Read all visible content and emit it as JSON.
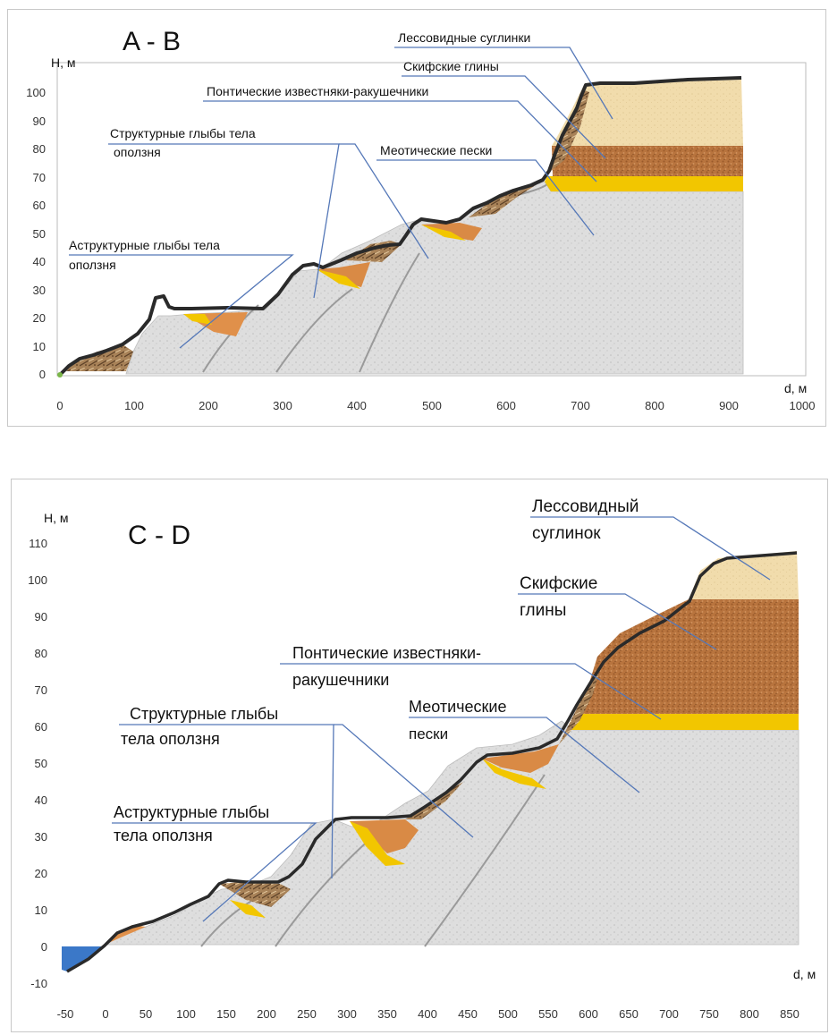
{
  "diagrams": [
    {
      "title": "A - B",
      "y_axis_label": "H, м",
      "x_axis_label": "d, м",
      "x_ticks": [
        "0",
        "100",
        "200",
        "300",
        "400",
        "500",
        "600",
        "700",
        "800",
        "900",
        "1000"
      ],
      "y_ticks": [
        "0",
        "10",
        "20",
        "30",
        "40",
        "50",
        "60",
        "70",
        "80",
        "90",
        "100"
      ],
      "labels": {
        "loess": "Лессовидные суглинки",
        "scythian": "Скифские глины",
        "pontic": "Понтические известняки-ракушечники",
        "structural": [
          "Структурные глыбы тела",
          "оползня"
        ],
        "meotic": "Меотические пески",
        "astructural": [
          "Аструктурные глыбы тела",
          "оползня"
        ]
      }
    },
    {
      "title": "C - D",
      "y_axis_label": "H, м",
      "x_axis_label": "d, м",
      "x_ticks": [
        "-50",
        "0",
        "50",
        "100",
        "150",
        "200",
        "250",
        "300",
        "350",
        "400",
        "450",
        "500",
        "550",
        "600",
        "650",
        "700",
        "750",
        "800",
        "850"
      ],
      "y_ticks": [
        "-10",
        "0",
        "10",
        "20",
        "30",
        "40",
        "50",
        "60",
        "70",
        "80",
        "90",
        "100",
        "110"
      ],
      "labels": {
        "loess": [
          "Лессовидный",
          "суглинок"
        ],
        "scythian": [
          "Скифские",
          "глины"
        ],
        "pontic": [
          "Понтические известняки-",
          "ракушечники"
        ],
        "meotic": [
          "Меотические",
          "пески"
        ],
        "structural": [
          "Структурные глыбы",
          "тела оползня"
        ],
        "astructural": [
          "Аструктурные глыбы",
          "тела оползня"
        ]
      }
    }
  ],
  "colors": {
    "meotic_sand": "#dedede",
    "pontic_limestone": "#f2c600",
    "scythian_clay": "#b8743e",
    "loess_loam": "#f1dcac",
    "landslide_blocks": "#9a7650",
    "water": "#3b78c8",
    "profile_line": "#222222",
    "leader_line": "#5578b8"
  }
}
